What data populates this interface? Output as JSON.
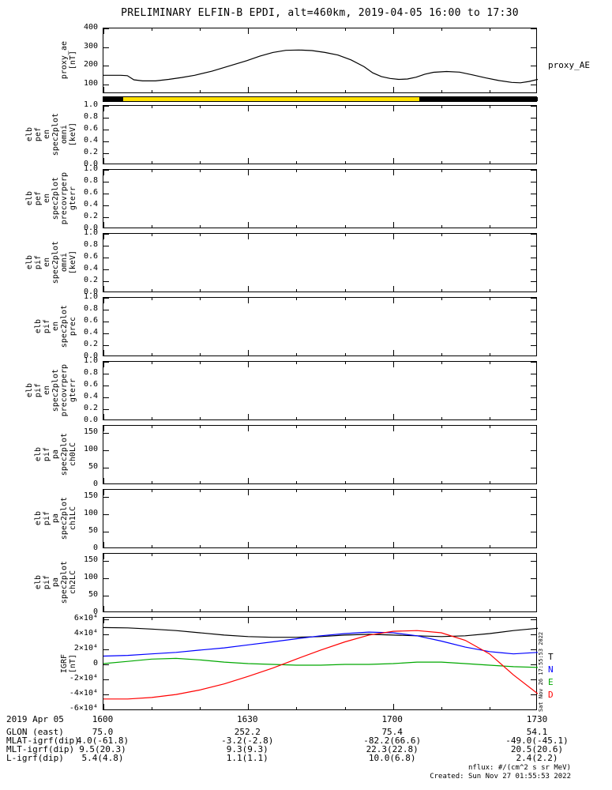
{
  "title": "PRELIMINARY ELFIN-B EPDI, alt=460km, 2019-04-05 16:00 to 17:30",
  "xaxis": {
    "date": "2019 Apr 05",
    "ticks": [
      "1600",
      "1630",
      "1700",
      "1730"
    ]
  },
  "footer_rows": [
    {
      "label": "GLON (east)",
      "values": [
        "75.0",
        "252.2",
        "75.4",
        "54.1"
      ]
    },
    {
      "label": "MLAT-igrf(dip)",
      "values": [
        "4.0(-61.8)",
        "-3.2(-2.8)",
        "-82.2(66.6)",
        "-49.0(-45.1)"
      ]
    },
    {
      "label": "MLT-igrf(dip)",
      "values": [
        "9.5(20.3)",
        "9.3(9.3)",
        "22.3(22.8)",
        "20.5(20.6)"
      ]
    },
    {
      "label": "L-igrf(dip)",
      "values": [
        "5.4(4.8)",
        "1.1(1.1)",
        "10.0(6.8)",
        "2.4(2.2)"
      ]
    }
  ],
  "notes": {
    "nflux": "nflux: #/(cm^2 s sr MeV)",
    "created": "Created: Sun Nov 27 01:55:53 2022",
    "side_timestamp": "Sat Nov 26 17:55:53 2022"
  },
  "colors": {
    "axis": "#000000",
    "bar_yellow": "#ffe100",
    "trace_T": "#000000",
    "trace_N": "#0000ff",
    "trace_E": "#00a800",
    "trace_D": "#ff0000"
  },
  "chart_data": [
    {
      "type": "line",
      "id": "proxy-ae",
      "right_label": "proxy_AE",
      "ylabel_lines": [
        "proxy_ae",
        "[nT]"
      ],
      "ylim": [
        50,
        400
      ],
      "yticks": [
        {
          "v": 400,
          "label": "400"
        },
        {
          "v": 300,
          "label": "300"
        },
        {
          "v": 200,
          "label": "200"
        },
        {
          "v": 100,
          "label": "100"
        }
      ],
      "x_range": [
        "16:00",
        "17:30"
      ],
      "series": [
        {
          "name": "proxy_AE",
          "color": "#000000",
          "points": [
            [
              0.0,
              150
            ],
            [
              0.04,
              150
            ],
            [
              0.055,
              148
            ],
            [
              0.07,
              126
            ],
            [
              0.09,
              120
            ],
            [
              0.12,
              120
            ],
            [
              0.15,
              128
            ],
            [
              0.18,
              138
            ],
            [
              0.21,
              150
            ],
            [
              0.25,
              172
            ],
            [
              0.29,
              200
            ],
            [
              0.33,
              228
            ],
            [
              0.36,
              252
            ],
            [
              0.39,
              272
            ],
            [
              0.42,
              283
            ],
            [
              0.45,
              285
            ],
            [
              0.48,
              282
            ],
            [
              0.51,
              272
            ],
            [
              0.54,
              258
            ],
            [
              0.57,
              232
            ],
            [
              0.6,
              196
            ],
            [
              0.62,
              163
            ],
            [
              0.64,
              143
            ],
            [
              0.66,
              133
            ],
            [
              0.68,
              128
            ],
            [
              0.7,
              130
            ],
            [
              0.72,
              140
            ],
            [
              0.74,
              156
            ],
            [
              0.76,
              166
            ],
            [
              0.79,
              170
            ],
            [
              0.82,
              167
            ],
            [
              0.85,
              152
            ],
            [
              0.88,
              136
            ],
            [
              0.91,
              122
            ],
            [
              0.94,
              112
            ],
            [
              0.96,
              110
            ],
            [
              0.98,
              117
            ],
            [
              1.0,
              128
            ]
          ]
        }
      ]
    },
    {
      "type": "strip",
      "id": "data-availability-bar",
      "segments": [
        {
          "color": "#000000",
          "from": 0.0,
          "to": 0.045
        },
        {
          "color": "#ffe100",
          "from": 0.045,
          "to": 0.727
        },
        {
          "color": "#000000",
          "from": 0.727,
          "to": 1.0
        }
      ]
    },
    {
      "type": "empty",
      "id": "elb-pef-en-spec2plot-omni",
      "ylabel_lines": [
        "elb",
        "pef",
        "en",
        "spec2plot",
        "omni",
        "[keV]"
      ],
      "ylim": [
        0,
        1
      ],
      "yticks": [
        {
          "v": 1.0,
          "label": "1.0"
        },
        {
          "v": 0.8,
          "label": "0.8"
        },
        {
          "v": 0.6,
          "label": "0.6"
        },
        {
          "v": 0.4,
          "label": "0.4"
        },
        {
          "v": 0.2,
          "label": "0.2"
        },
        {
          "v": 0.0,
          "label": "0.0"
        }
      ]
    },
    {
      "type": "empty",
      "id": "elb-pef-en-spec2plot-precovrperp-gterr",
      "ylabel_lines": [
        "elb",
        "pef",
        "en",
        "spec2plot",
        "precovrperp",
        "gterr"
      ],
      "ylim": [
        0,
        1
      ],
      "yticks": [
        {
          "v": 1.0,
          "label": "1.0"
        },
        {
          "v": 0.8,
          "label": "0.8"
        },
        {
          "v": 0.6,
          "label": "0.6"
        },
        {
          "v": 0.4,
          "label": "0.4"
        },
        {
          "v": 0.2,
          "label": "0.2"
        },
        {
          "v": 0.0,
          "label": "0.0"
        }
      ]
    },
    {
      "type": "empty",
      "id": "elb-pif-en-spec2plot-omni",
      "ylabel_lines": [
        "elb",
        "pif",
        "en",
        "spec2plot",
        "omni",
        "[keV]"
      ],
      "ylim": [
        0,
        1
      ],
      "yticks": [
        {
          "v": 1.0,
          "label": "1.0"
        },
        {
          "v": 0.8,
          "label": "0.8"
        },
        {
          "v": 0.6,
          "label": "0.6"
        },
        {
          "v": 0.4,
          "label": "0.4"
        },
        {
          "v": 0.2,
          "label": "0.2"
        },
        {
          "v": 0.0,
          "label": "0.0"
        }
      ]
    },
    {
      "type": "empty",
      "id": "elb-pif-en-spec2plot-prec",
      "ylabel_lines": [
        "elb",
        "pif",
        "en",
        "spec2plot",
        "prec"
      ],
      "ylim": [
        0,
        1
      ],
      "yticks": [
        {
          "v": 1.0,
          "label": "1.0"
        },
        {
          "v": 0.8,
          "label": "0.8"
        },
        {
          "v": 0.6,
          "label": "0.6"
        },
        {
          "v": 0.4,
          "label": "0.4"
        },
        {
          "v": 0.2,
          "label": "0.2"
        },
        {
          "v": 0.0,
          "label": "0.0"
        }
      ]
    },
    {
      "type": "empty",
      "id": "elb-pif-en-spec2plot-precovrperp-gterr",
      "ylabel_lines": [
        "elb",
        "pif",
        "en",
        "spec2plot",
        "precovrperp",
        "gterr"
      ],
      "ylim": [
        0,
        1
      ],
      "yticks": [
        {
          "v": 1.0,
          "label": "1.0"
        },
        {
          "v": 0.8,
          "label": "0.8"
        },
        {
          "v": 0.6,
          "label": "0.6"
        },
        {
          "v": 0.4,
          "label": "0.4"
        },
        {
          "v": 0.2,
          "label": "0.2"
        },
        {
          "v": 0.0,
          "label": "0.0"
        }
      ]
    },
    {
      "type": "empty",
      "id": "elb-pif-pa-spec2plot-ch0LC",
      "ylabel_lines": [
        "elb",
        "pif",
        "pa",
        "spec2plot",
        "ch0LC"
      ],
      "ylim": [
        0,
        170
      ],
      "yticks": [
        {
          "v": 150,
          "label": "150"
        },
        {
          "v": 100,
          "label": "100"
        },
        {
          "v": 50,
          "label": "50"
        },
        {
          "v": 0,
          "label": "0"
        }
      ]
    },
    {
      "type": "empty",
      "id": "elb-pif-pa-spec2plot-ch1LC",
      "ylabel_lines": [
        "elb",
        "pif",
        "pa",
        "spec2plot",
        "ch1LC"
      ],
      "ylim": [
        0,
        170
      ],
      "yticks": [
        {
          "v": 150,
          "label": "150"
        },
        {
          "v": 100,
          "label": "100"
        },
        {
          "v": 50,
          "label": "50"
        },
        {
          "v": 0,
          "label": "0"
        }
      ]
    },
    {
      "type": "empty",
      "id": "elb-pif-pa-spec2plot-ch2LC",
      "ylabel_lines": [
        "elb",
        "pif",
        "pa",
        "spec2plot",
        "ch2LC"
      ],
      "ylim": [
        0,
        170
      ],
      "yticks": [
        {
          "v": 150,
          "label": "150"
        },
        {
          "v": 100,
          "label": "100"
        },
        {
          "v": 50,
          "label": "50"
        },
        {
          "v": 0,
          "label": "0"
        }
      ]
    },
    {
      "type": "line",
      "id": "igrf",
      "ylabel_lines": [
        "IGRF",
        "[nT]"
      ],
      "ylim": [
        -62000,
        62000
      ],
      "yticks": [
        {
          "v": 60000,
          "label": "6×10⁴"
        },
        {
          "v": 40000,
          "label": "4×10⁴"
        },
        {
          "v": 20000,
          "label": "2×10⁴"
        },
        {
          "v": 0,
          "label": "0"
        },
        {
          "v": -20000,
          "label": "-2×10⁴"
        },
        {
          "v": -40000,
          "label": "-4×10⁴"
        },
        {
          "v": -60000,
          "label": "-6×10⁴"
        }
      ],
      "legend": [
        {
          "label": "T",
          "color": "#000000"
        },
        {
          "label": "N",
          "color": "#0000ff"
        },
        {
          "label": "E",
          "color": "#00a800"
        },
        {
          "label": "D",
          "color": "#ff0000"
        }
      ],
      "series": [
        {
          "name": "T",
          "color": "#000000",
          "points": [
            [
              0,
              49000
            ],
            [
              0.056,
              48500
            ],
            [
              0.111,
              47000
            ],
            [
              0.167,
              45000
            ],
            [
              0.222,
              42000
            ],
            [
              0.278,
              39000
            ],
            [
              0.333,
              37000
            ],
            [
              0.389,
              36000
            ],
            [
              0.444,
              36000
            ],
            [
              0.5,
              37000
            ],
            [
              0.556,
              39000
            ],
            [
              0.611,
              40000
            ],
            [
              0.667,
              39000
            ],
            [
              0.722,
              38000
            ],
            [
              0.778,
              37000
            ],
            [
              0.833,
              38000
            ],
            [
              0.889,
              41000
            ],
            [
              0.944,
              45000
            ],
            [
              1,
              48000
            ]
          ]
        },
        {
          "name": "N",
          "color": "#0000ff",
          "points": [
            [
              0,
              11000
            ],
            [
              0.056,
              12000
            ],
            [
              0.111,
              14000
            ],
            [
              0.167,
              16000
            ],
            [
              0.222,
              19000
            ],
            [
              0.278,
              22000
            ],
            [
              0.333,
              26000
            ],
            [
              0.389,
              30000
            ],
            [
              0.444,
              34000
            ],
            [
              0.5,
              38000
            ],
            [
              0.556,
              41000
            ],
            [
              0.611,
              43000
            ],
            [
              0.667,
              42000
            ],
            [
              0.722,
              38000
            ],
            [
              0.778,
              31000
            ],
            [
              0.833,
              23000
            ],
            [
              0.889,
              17000
            ],
            [
              0.944,
              14000
            ],
            [
              1,
              16000
            ]
          ]
        },
        {
          "name": "E",
          "color": "#00a800",
          "points": [
            [
              0,
              1000
            ],
            [
              0.056,
              4000
            ],
            [
              0.111,
              7000
            ],
            [
              0.167,
              8000
            ],
            [
              0.222,
              6000
            ],
            [
              0.278,
              3000
            ],
            [
              0.333,
              1000
            ],
            [
              0.389,
              0
            ],
            [
              0.444,
              -1000
            ],
            [
              0.5,
              -1000
            ],
            [
              0.556,
              0
            ],
            [
              0.611,
              0
            ],
            [
              0.667,
              1000
            ],
            [
              0.722,
              3000
            ],
            [
              0.778,
              3000
            ],
            [
              0.833,
              1000
            ],
            [
              0.889,
              -1000
            ],
            [
              0.944,
              -3000
            ],
            [
              1,
              -4000
            ]
          ]
        },
        {
          "name": "D",
          "color": "#ff0000",
          "points": [
            [
              0,
              -46000
            ],
            [
              0.056,
              -46000
            ],
            [
              0.111,
              -44000
            ],
            [
              0.167,
              -40000
            ],
            [
              0.222,
              -34000
            ],
            [
              0.278,
              -26000
            ],
            [
              0.333,
              -16000
            ],
            [
              0.389,
              -5000
            ],
            [
              0.444,
              7000
            ],
            [
              0.5,
              19000
            ],
            [
              0.556,
              30000
            ],
            [
              0.611,
              39000
            ],
            [
              0.667,
              44000
            ],
            [
              0.722,
              45000
            ],
            [
              0.778,
              42000
            ],
            [
              0.833,
              32000
            ],
            [
              0.889,
              14000
            ],
            [
              0.944,
              -14000
            ],
            [
              1,
              -39000
            ]
          ]
        }
      ]
    }
  ]
}
